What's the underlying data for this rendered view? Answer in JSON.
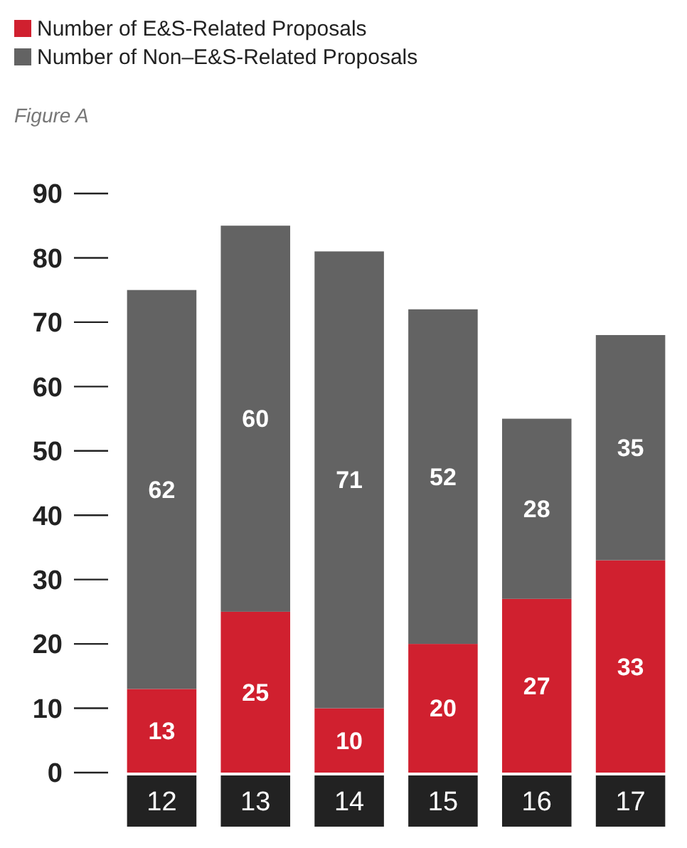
{
  "chart_data": {
    "type": "bar",
    "title": "Figure A",
    "stacked": true,
    "categories": [
      "12",
      "13",
      "14",
      "15",
      "16",
      "17"
    ],
    "series": [
      {
        "name": "Number of E&S-Related Proposals",
        "color": "#d0202f",
        "values": [
          13,
          25,
          10,
          20,
          27,
          33
        ]
      },
      {
        "name": "Number of Non–E&S-Related Proposals",
        "color": "#636363",
        "values": [
          62,
          60,
          71,
          52,
          28,
          35
        ]
      }
    ],
    "ylim": [
      0,
      90
    ],
    "yticks": [
      0,
      10,
      20,
      30,
      40,
      50,
      60,
      70,
      80,
      90
    ],
    "data_labels": true,
    "legend": "top left",
    "grid": false
  }
}
